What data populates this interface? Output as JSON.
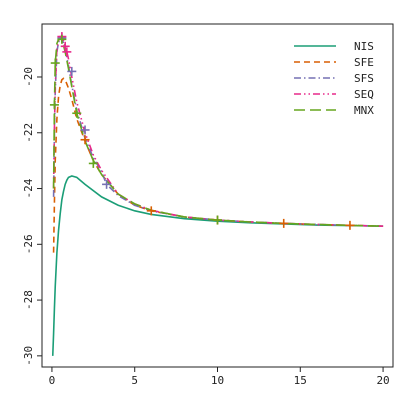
{
  "chart_data": {
    "type": "line",
    "title": "",
    "xlabel": "",
    "ylabel": "",
    "xlim": [
      -0.6,
      20.6
    ],
    "ylim": [
      -30.4,
      -18.1
    ],
    "x_ticks": [
      0,
      5,
      10,
      15,
      20
    ],
    "y_ticks": [
      -30,
      -28,
      -26,
      -24,
      -22,
      -20
    ],
    "grid": false,
    "legend": "top-right",
    "series": [
      {
        "name": "NIS",
        "color": "#1b9e77",
        "dash": "solid",
        "marker": "none",
        "x": [
          0.05,
          0.1,
          0.15,
          0.2,
          0.3,
          0.4,
          0.5,
          0.6,
          0.7,
          0.8,
          0.9,
          1.0,
          1.2,
          1.5,
          2.0,
          3.0,
          4.0,
          5.0,
          6.0,
          8.0,
          10.0,
          12.0,
          14.0,
          16.0,
          18.0,
          20.0
        ],
        "y": [
          -30.0,
          -29.2,
          -28.3,
          -27.5,
          -26.3,
          -25.5,
          -24.9,
          -24.4,
          -24.1,
          -23.85,
          -23.7,
          -23.6,
          -23.55,
          -23.6,
          -23.85,
          -24.3,
          -24.6,
          -24.8,
          -24.93,
          -25.08,
          -25.17,
          -25.23,
          -25.27,
          -25.31,
          -25.33,
          -25.35
        ]
      },
      {
        "name": "SFE",
        "color": "#d95f02",
        "dash": "dashed",
        "marker": "plus",
        "x": [
          0.1,
          0.15,
          0.2,
          0.3,
          0.4,
          0.5,
          0.6,
          0.7,
          0.8,
          1.0,
          1.2,
          1.5,
          2.0,
          2.5,
          3.0,
          4.0,
          5.0,
          6.0,
          8.0,
          10.0,
          12.0,
          14.0,
          16.0,
          18.0,
          20.0
        ],
        "y": [
          -26.3,
          -24.5,
          -23.0,
          -21.5,
          -20.7,
          -20.3,
          -20.1,
          -20.05,
          -20.1,
          -20.4,
          -20.8,
          -21.5,
          -22.3,
          -23.0,
          -23.5,
          -24.2,
          -24.6,
          -24.8,
          -25.02,
          -25.13,
          -25.2,
          -25.25,
          -25.29,
          -25.32,
          -25.35
        ],
        "markers_x": [
          2.0,
          6.0,
          10.0,
          14.0,
          18.0
        ],
        "markers_y": [
          -22.25,
          -24.8,
          -25.13,
          -25.25,
          -25.32
        ]
      },
      {
        "name": "SFS",
        "color": "#7570b3",
        "dash": "dashdot",
        "marker": "plus",
        "x": [
          0.1,
          0.15,
          0.2,
          0.3,
          0.4,
          0.5,
          0.6,
          0.8,
          1.0,
          1.2,
          1.5,
          2.0,
          2.5,
          3.0,
          3.3,
          4.0,
          5.0,
          6.0,
          8.0,
          10.0,
          12.0,
          14.0,
          16.0,
          18.0,
          20.0
        ],
        "y": [
          -24.3,
          -22.0,
          -20.5,
          -19.1,
          -18.75,
          -18.6,
          -18.6,
          -19.0,
          -19.6,
          -20.3,
          -21.2,
          -22.2,
          -22.9,
          -23.4,
          -23.85,
          -24.25,
          -24.6,
          -24.8,
          -25.02,
          -25.13,
          -25.2,
          -25.25,
          -25.29,
          -25.32,
          -25.35
        ],
        "markers_x": [
          0.6,
          1.2,
          2.0,
          3.3
        ],
        "markers_y": [
          -18.6,
          -19.8,
          -21.9,
          -23.85
        ]
      },
      {
        "name": "SEQ",
        "color": "#e7298a",
        "dash": "dashdotdot",
        "marker": "plus",
        "x": [
          0.1,
          0.15,
          0.2,
          0.3,
          0.4,
          0.5,
          0.6,
          0.7,
          0.8,
          0.9,
          1.0,
          1.2,
          1.5,
          2.0,
          2.5,
          3.0,
          4.0,
          5.0,
          6.0,
          8.0,
          10.0,
          12.0,
          14.0,
          16.0,
          18.0,
          20.0
        ],
        "y": [
          -24.0,
          -21.8,
          -20.4,
          -19.0,
          -18.7,
          -18.55,
          -18.55,
          -18.7,
          -18.9,
          -19.1,
          -19.35,
          -20.0,
          -20.9,
          -22.0,
          -22.8,
          -23.35,
          -24.2,
          -24.55,
          -24.78,
          -25.02,
          -25.13,
          -25.2,
          -25.25,
          -25.29,
          -25.32,
          -25.35
        ],
        "markers_x": [
          0.6,
          0.8,
          0.9
        ],
        "markers_y": [
          -18.55,
          -18.9,
          -19.1
        ]
      },
      {
        "name": "MNX",
        "color": "#66a61e",
        "dash": "longdash",
        "marker": "plus",
        "x": [
          0.1,
          0.15,
          0.2,
          0.3,
          0.4,
          0.5,
          0.6,
          0.8,
          1.0,
          1.2,
          1.5,
          2.0,
          2.5,
          3.0,
          4.0,
          5.0,
          6.0,
          8.0,
          10.0,
          12.0,
          14.0,
          16.0,
          18.0,
          20.0
        ],
        "y": [
          -24.0,
          -21.0,
          -19.5,
          -18.8,
          -18.65,
          -18.6,
          -18.65,
          -19.1,
          -19.7,
          -20.35,
          -21.3,
          -22.3,
          -23.0,
          -23.5,
          -24.2,
          -24.55,
          -24.78,
          -25.02,
          -25.13,
          -25.2,
          -25.25,
          -25.29,
          -25.32,
          -25.35
        ],
        "markers_x": [
          0.15,
          0.2,
          0.6,
          1.5,
          2.5,
          10.0
        ],
        "markers_y": [
          -21.0,
          -19.5,
          -18.65,
          -21.3,
          -23.1,
          -25.13
        ]
      }
    ]
  }
}
